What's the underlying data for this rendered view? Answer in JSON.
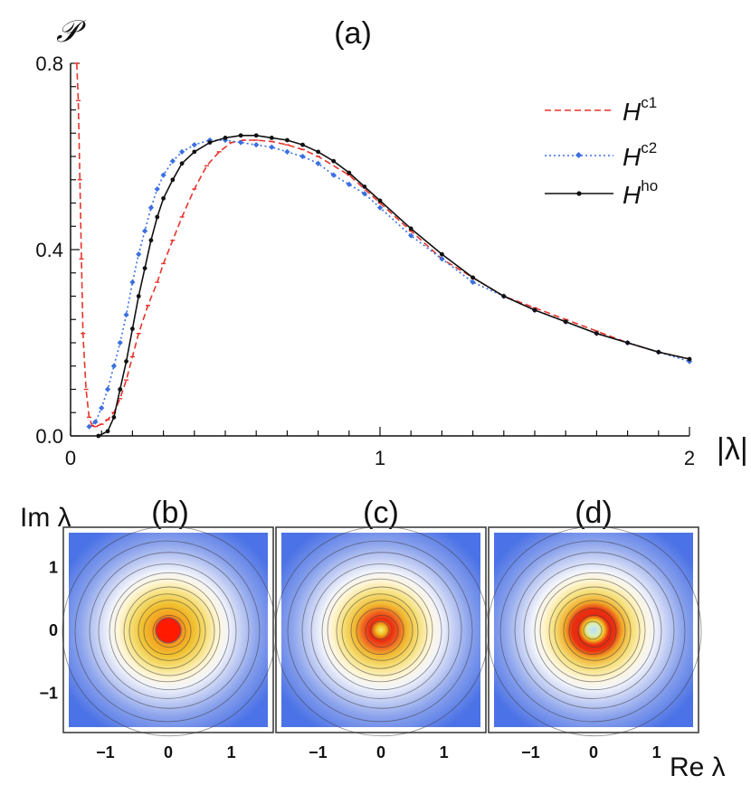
{
  "chart_data": [
    {
      "panel": "(a)",
      "type": "line",
      "title": "(a)",
      "ylabel": "𝒫",
      "xlabel": "|λ|",
      "xlim": [
        0,
        2
      ],
      "ylim": [
        0,
        0.8
      ],
      "xticks": [
        "0",
        "1",
        "2"
      ],
      "yticks": [
        "0.0",
        "0.4",
        "0.8"
      ],
      "legend_position": "top-right",
      "series": [
        {
          "name": "H^c1",
          "legend_base": "H",
          "legend_sup": "c1",
          "color": "#e8332a",
          "style": "dashed",
          "marker": "tick",
          "points": [
            [
              0.02,
              0.8
            ],
            [
              0.025,
              0.72
            ],
            [
              0.03,
              0.55
            ],
            [
              0.035,
              0.38
            ],
            [
              0.04,
              0.22
            ],
            [
              0.05,
              0.1
            ],
            [
              0.06,
              0.04
            ],
            [
              0.07,
              0.022
            ],
            [
              0.08,
              0.02
            ],
            [
              0.1,
              0.025
            ],
            [
              0.12,
              0.035
            ],
            [
              0.14,
              0.05
            ],
            [
              0.16,
              0.08
            ],
            [
              0.18,
              0.12
            ],
            [
              0.2,
              0.17
            ],
            [
              0.22,
              0.22
            ],
            [
              0.25,
              0.28
            ],
            [
              0.28,
              0.33
            ],
            [
              0.3,
              0.37
            ],
            [
              0.33,
              0.42
            ],
            [
              0.36,
              0.47
            ],
            [
              0.4,
              0.53
            ],
            [
              0.44,
              0.58
            ],
            [
              0.48,
              0.61
            ],
            [
              0.52,
              0.63
            ],
            [
              0.56,
              0.635
            ],
            [
              0.6,
              0.635
            ],
            [
              0.65,
              0.632
            ],
            [
              0.7,
              0.625
            ],
            [
              0.75,
              0.615
            ],
            [
              0.8,
              0.6
            ],
            [
              0.9,
              0.56
            ],
            [
              1.0,
              0.5
            ],
            [
              1.1,
              0.44
            ],
            [
              1.2,
              0.38
            ],
            [
              1.3,
              0.34
            ],
            [
              1.4,
              0.3
            ],
            [
              1.5,
              0.275
            ],
            [
              1.6,
              0.25
            ],
            [
              1.7,
              0.225
            ],
            [
              1.8,
              0.2
            ],
            [
              1.9,
              0.18
            ],
            [
              2.0,
              0.165
            ]
          ]
        },
        {
          "name": "H^c2",
          "legend_base": "H",
          "legend_sup": "c2",
          "color": "#3a6fe0",
          "style": "dotted",
          "marker": "diamond",
          "points": [
            [
              0.06,
              0.02
            ],
            [
              0.08,
              0.03
            ],
            [
              0.1,
              0.06
            ],
            [
              0.12,
              0.1
            ],
            [
              0.14,
              0.15
            ],
            [
              0.16,
              0.2
            ],
            [
              0.18,
              0.26
            ],
            [
              0.2,
              0.33
            ],
            [
              0.22,
              0.39
            ],
            [
              0.24,
              0.44
            ],
            [
              0.26,
              0.49
            ],
            [
              0.28,
              0.53
            ],
            [
              0.3,
              0.56
            ],
            [
              0.33,
              0.59
            ],
            [
              0.36,
              0.61
            ],
            [
              0.4,
              0.625
            ],
            [
              0.45,
              0.635
            ],
            [
              0.5,
              0.635
            ],
            [
              0.55,
              0.63
            ],
            [
              0.6,
              0.625
            ],
            [
              0.65,
              0.62
            ],
            [
              0.7,
              0.61
            ],
            [
              0.75,
              0.6
            ],
            [
              0.8,
              0.585
            ],
            [
              0.85,
              0.56
            ],
            [
              0.9,
              0.54
            ],
            [
              0.95,
              0.52
            ],
            [
              1.0,
              0.49
            ],
            [
              1.1,
              0.43
            ],
            [
              1.2,
              0.38
            ],
            [
              1.3,
              0.33
            ],
            [
              1.4,
              0.3
            ],
            [
              1.5,
              0.27
            ],
            [
              1.6,
              0.245
            ],
            [
              1.7,
              0.22
            ],
            [
              1.8,
              0.2
            ],
            [
              1.9,
              0.18
            ],
            [
              2.0,
              0.16
            ]
          ]
        },
        {
          "name": "H^ho",
          "legend_base": "H",
          "legend_sup": "ho",
          "color": "#111111",
          "style": "solid",
          "marker": "dot",
          "points": [
            [
              0.09,
              0.0
            ],
            [
              0.12,
              0.01
            ],
            [
              0.14,
              0.04
            ],
            [
              0.16,
              0.1
            ],
            [
              0.18,
              0.16
            ],
            [
              0.2,
              0.23
            ],
            [
              0.22,
              0.3
            ],
            [
              0.24,
              0.36
            ],
            [
              0.26,
              0.42
            ],
            [
              0.28,
              0.47
            ],
            [
              0.3,
              0.51
            ],
            [
              0.33,
              0.55
            ],
            [
              0.36,
              0.585
            ],
            [
              0.4,
              0.61
            ],
            [
              0.45,
              0.63
            ],
            [
              0.5,
              0.64
            ],
            [
              0.55,
              0.645
            ],
            [
              0.6,
              0.645
            ],
            [
              0.65,
              0.64
            ],
            [
              0.7,
              0.635
            ],
            [
              0.75,
              0.625
            ],
            [
              0.8,
              0.61
            ],
            [
              0.85,
              0.59
            ],
            [
              0.9,
              0.565
            ],
            [
              0.95,
              0.535
            ],
            [
              1.0,
              0.505
            ],
            [
              1.1,
              0.445
            ],
            [
              1.2,
              0.39
            ],
            [
              1.3,
              0.34
            ],
            [
              1.4,
              0.3
            ],
            [
              1.5,
              0.27
            ],
            [
              1.6,
              0.245
            ],
            [
              1.7,
              0.22
            ],
            [
              1.8,
              0.2
            ],
            [
              1.9,
              0.18
            ],
            [
              2.0,
              0.165
            ]
          ]
        }
      ]
    },
    {
      "panel": "(b)",
      "type": "heatmap",
      "title": "(b)",
      "ylabel": "Im λ",
      "xlim": [
        -1.5,
        1.5
      ],
      "ylim": [
        -1.5,
        1.5
      ],
      "xticks": [
        "−1",
        "0",
        "1"
      ],
      "yticks": [
        "1",
        "0",
        "−1"
      ],
      "peak": "center",
      "center_color": "#ff2200"
    },
    {
      "panel": "(c)",
      "type": "heatmap",
      "title": "(c)",
      "xlim": [
        -1.5,
        1.5
      ],
      "ylim": [
        -1.5,
        1.5
      ],
      "xticks": [
        "−1",
        "0",
        "1"
      ],
      "peak": "ring",
      "ring_radius": 0.15,
      "center_color": "#f4e04a"
    },
    {
      "panel": "(d)",
      "type": "heatmap",
      "title": "(d)",
      "xlabel": "Re λ",
      "xlim": [
        -1.5,
        1.5
      ],
      "ylim": [
        -1.5,
        1.5
      ],
      "xticks": [
        "−1",
        "0",
        "1"
      ],
      "peak": "ring",
      "ring_radius": 0.2,
      "center_color": "#b0d8ff"
    }
  ]
}
